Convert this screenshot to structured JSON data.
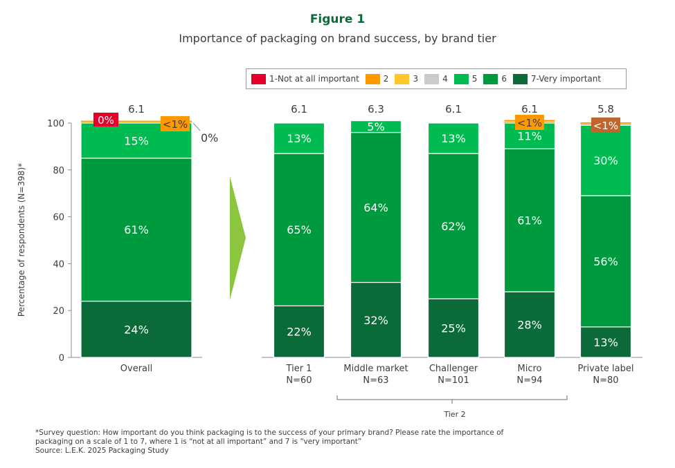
{
  "figure_label": "Figure 1",
  "chart_data": {
    "type": "bar",
    "stacked": true,
    "title": "Importance of packaging on brand success, by brand tier",
    "ylabel": "Percentage of respondents (N=398)*",
    "ylim": [
      0,
      100
    ],
    "yticks": [
      0,
      20,
      40,
      60,
      80,
      100
    ],
    "grid": false,
    "legend_position": "top-right",
    "legend": [
      {
        "label": "1-Not at all important",
        "color": "#e4002b"
      },
      {
        "label": "2",
        "color": "#ff9900"
      },
      {
        "label": "3",
        "color": "#ffc72c"
      },
      {
        "label": "4",
        "color": "#c8cdcc"
      },
      {
        "label": "5",
        "color": "#00bc50"
      },
      {
        "label": "6",
        "color": "#009a3e"
      },
      {
        "label": "7-Very important",
        "color": "#0b6b38"
      }
    ],
    "categories": [
      {
        "label": "Overall",
        "n": "",
        "mean": "6.1"
      },
      {
        "label": "Tier 1",
        "n": "N=60",
        "mean": "6.1"
      },
      {
        "label": "Middle market",
        "n": "N=63",
        "mean": "6.3"
      },
      {
        "label": "Challenger",
        "n": "N=101",
        "mean": "6.1"
      },
      {
        "label": "Micro",
        "n": "N=94",
        "mean": "6.1"
      },
      {
        "label": "Private label",
        "n": "N=80",
        "mean": "5.8"
      }
    ],
    "series": [
      {
        "name": "7-Very important",
        "values": [
          24,
          22,
          32,
          25,
          28,
          13
        ],
        "labels": [
          "24%",
          "22%",
          "32%",
          "25%",
          "28%",
          "13%"
        ]
      },
      {
        "name": "6",
        "values": [
          61,
          65,
          64,
          62,
          61,
          56
        ],
        "labels": [
          "61%",
          "65%",
          "64%",
          "62%",
          "61%",
          "56%"
        ]
      },
      {
        "name": "5",
        "values": [
          15,
          13,
          5,
          13,
          11,
          30
        ],
        "labels": [
          "15%",
          "13%",
          "5%",
          "13%",
          "11%",
          "30%"
        ]
      },
      {
        "name": "4",
        "values": [
          0.3,
          0,
          0,
          0,
          0.4,
          0.4
        ],
        "labels": [
          "",
          "",
          "",
          "",
          "",
          ""
        ]
      },
      {
        "name": "3",
        "values": [
          0.3,
          0,
          0,
          0,
          0.4,
          0.4
        ],
        "labels": [
          "",
          "",
          "",
          "",
          "",
          ""
        ]
      },
      {
        "name": "2",
        "values": [
          0.4,
          0,
          0,
          0,
          0.5,
          0.5
        ],
        "labels": [
          "<1%",
          "",
          "",
          "",
          "<1%",
          "<1%"
        ]
      },
      {
        "name": "1-Not at all important",
        "values": [
          0,
          0,
          0,
          0,
          0,
          0
        ],
        "labels": [
          "0%",
          "",
          "",
          "",
          "",
          ""
        ]
      }
    ],
    "annotations": {
      "overall_zero_label": "0%",
      "group_bracket_label": "Tier 2"
    }
  },
  "footnote": {
    "line1": "*Survey question: How important do you think packaging is to the success of your primary brand? Please rate the importance of",
    "line2": "packaging on a scale of 1 to 7, where 1 is “not at all important” and 7 is “very important”",
    "line3": "Source: L.E.K. 2025 Packaging Study"
  }
}
